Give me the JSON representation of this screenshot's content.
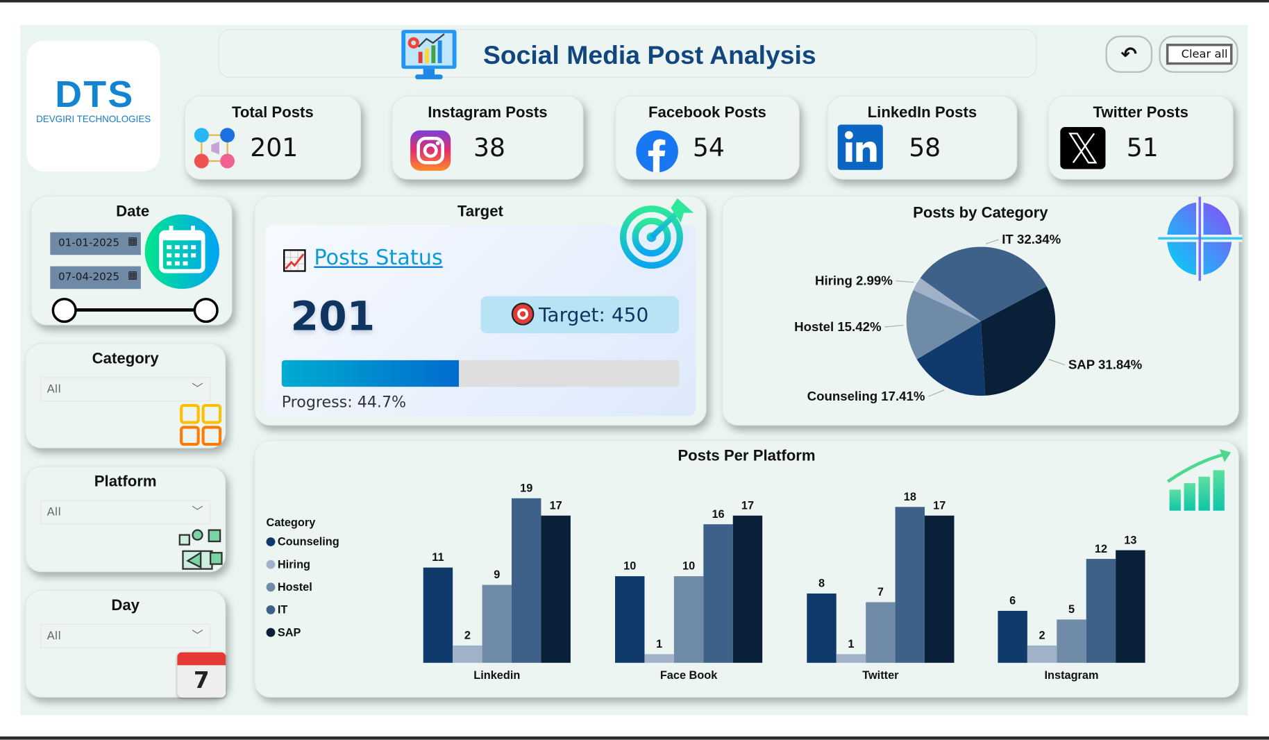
{
  "header": {
    "title": "Social Media Post Analysis",
    "clear_all": "Clear all"
  },
  "logo": {
    "text": "DTS",
    "subtitle": "DEVGIRI TECHNOLOGIES"
  },
  "kpis": [
    {
      "label": "Total Posts",
      "value": "201",
      "icon": "social-media-icon"
    },
    {
      "label": "Instagram Posts",
      "value": "38",
      "icon": "instagram-icon"
    },
    {
      "label": "Facebook Posts",
      "value": "54",
      "icon": "facebook-icon"
    },
    {
      "label": "LinkedIn Posts",
      "value": "58",
      "icon": "linkedin-icon"
    },
    {
      "label": "Twitter Posts",
      "value": "51",
      "icon": "x-icon"
    }
  ],
  "filters": {
    "date": {
      "title": "Date",
      "start": "01-01-2025",
      "end": "07-04-2025"
    },
    "category": {
      "title": "Category",
      "value": "All"
    },
    "platform": {
      "title": "Platform",
      "value": "All"
    },
    "day": {
      "title": "Day",
      "value": "All",
      "icon_number": "7"
    }
  },
  "target": {
    "title": "Target",
    "status_link": "Posts Status",
    "current": "201",
    "target_label": "Target: 450",
    "progress": 44.7,
    "progress_label": "Progress: 44.7%"
  },
  "chart_data": [
    {
      "type": "pie",
      "title": "Posts by Category",
      "slices": [
        {
          "name": "SAP",
          "value": 31.84,
          "label": "SAP 31.84%",
          "color": "#0a1f38"
        },
        {
          "name": "Counseling",
          "value": 17.41,
          "label": "Counseling 17.41%",
          "color": "#0f3a6b"
        },
        {
          "name": "Hostel",
          "value": 15.42,
          "label": "Hostel 15.42%",
          "color": "#6f8ba8"
        },
        {
          "name": "Hiring",
          "value": 2.99,
          "label": "Hiring 2.99%",
          "color": "#a0b2c8"
        },
        {
          "name": "IT",
          "value": 32.34,
          "label": "IT 32.34%",
          "color": "#3e6189"
        }
      ]
    },
    {
      "type": "bar",
      "title": "Posts Per Platform",
      "legend_title": "Category",
      "legend_position": "left",
      "categories": [
        "Linkedin",
        "Face Book",
        "Twitter",
        "Instagram"
      ],
      "series": [
        {
          "name": "Counseling",
          "color": "#0f3a6b",
          "values": [
            11,
            10,
            8,
            6
          ]
        },
        {
          "name": "Hiring",
          "color": "#a0b2c8",
          "values": [
            2,
            1,
            1,
            2
          ]
        },
        {
          "name": "Hostel",
          "color": "#6f8ba8",
          "values": [
            9,
            10,
            7,
            5
          ]
        },
        {
          "name": "IT",
          "color": "#3e6189",
          "values": [
            19,
            16,
            18,
            12
          ]
        },
        {
          "name": "SAP",
          "color": "#0a1f38",
          "values": [
            17,
            17,
            17,
            13
          ]
        }
      ]
    }
  ]
}
